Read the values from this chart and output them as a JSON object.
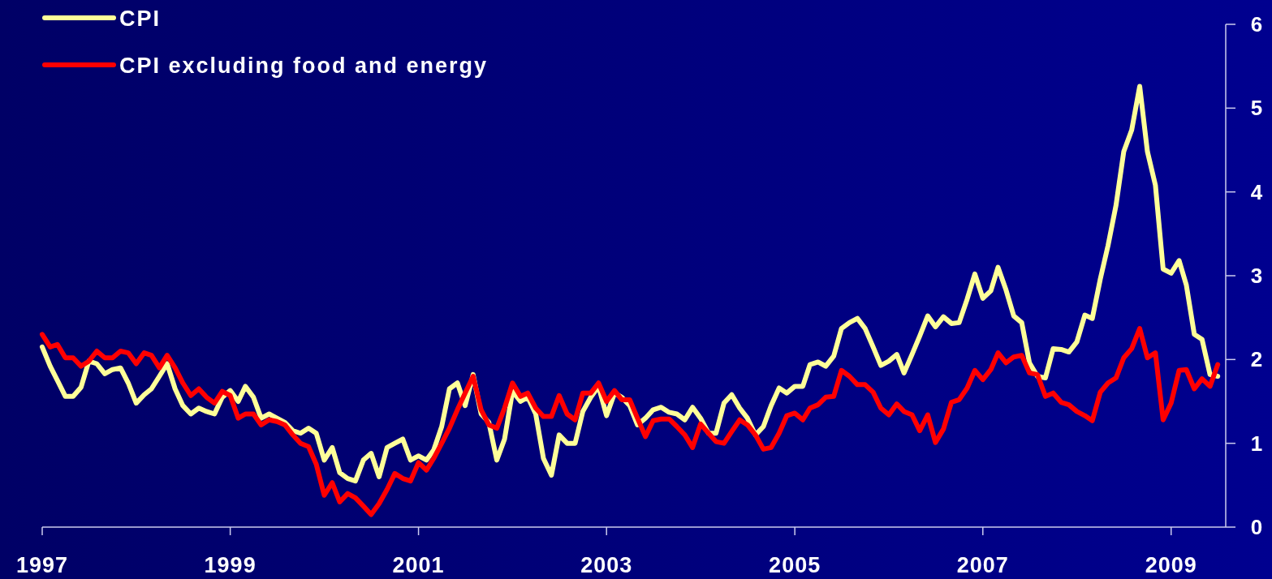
{
  "chart_data": {
    "type": "line",
    "x": [
      "1997-01",
      "1997-02",
      "1997-03",
      "1997-04",
      "1997-05",
      "1997-06",
      "1997-07",
      "1997-08",
      "1997-09",
      "1997-10",
      "1997-11",
      "1997-12",
      "1998-01",
      "1998-02",
      "1998-03",
      "1998-04",
      "1998-05",
      "1998-06",
      "1998-07",
      "1998-08",
      "1998-09",
      "1998-10",
      "1998-11",
      "1998-12",
      "1999-01",
      "1999-02",
      "1999-03",
      "1999-04",
      "1999-05",
      "1999-06",
      "1999-07",
      "1999-08",
      "1999-09",
      "1999-10",
      "1999-11",
      "1999-12",
      "2000-01",
      "2000-02",
      "2000-03",
      "2000-04",
      "2000-05",
      "2000-06",
      "2000-07",
      "2000-08",
      "2000-09",
      "2000-10",
      "2000-11",
      "2000-12",
      "2001-01",
      "2001-02",
      "2001-03",
      "2001-04",
      "2001-05",
      "2001-06",
      "2001-07",
      "2001-08",
      "2001-09",
      "2001-10",
      "2001-11",
      "2001-12",
      "2002-01",
      "2002-02",
      "2002-03",
      "2002-04",
      "2002-05",
      "2002-06",
      "2002-07",
      "2002-08",
      "2002-09",
      "2002-10",
      "2002-11",
      "2002-12",
      "2003-01",
      "2003-02",
      "2003-03",
      "2003-04",
      "2003-05",
      "2003-06",
      "2003-07",
      "2003-08",
      "2003-09",
      "2003-10",
      "2003-11",
      "2003-12",
      "2004-01",
      "2004-02",
      "2004-03",
      "2004-04",
      "2004-05",
      "2004-06",
      "2004-07",
      "2004-08",
      "2004-09",
      "2004-10",
      "2004-11",
      "2004-12",
      "2005-01",
      "2005-02",
      "2005-03",
      "2005-04",
      "2005-05",
      "2005-06",
      "2005-07",
      "2005-08",
      "2005-09",
      "2005-10",
      "2005-11",
      "2005-12",
      "2006-01",
      "2006-02",
      "2006-03",
      "2006-04",
      "2006-05",
      "2006-06",
      "2006-07",
      "2006-08",
      "2006-09",
      "2006-10",
      "2006-11",
      "2006-12",
      "2007-01",
      "2007-02",
      "2007-03",
      "2007-04",
      "2007-05",
      "2007-06",
      "2007-07",
      "2007-08",
      "2007-09",
      "2007-10",
      "2007-11",
      "2007-12",
      "2008-01",
      "2008-02",
      "2008-03",
      "2008-04",
      "2008-05",
      "2008-06",
      "2008-07",
      "2008-08",
      "2008-09",
      "2008-10",
      "2008-11",
      "2008-12",
      "2009-01",
      "2009-02",
      "2009-03",
      "2009-04",
      "2009-05",
      "2009-06",
      "2009-07"
    ],
    "series": [
      {
        "name": "CPI",
        "color": "#ffff99",
        "values": [
          2.15,
          1.92,
          1.75,
          1.56,
          1.56,
          1.67,
          1.98,
          1.95,
          1.83,
          1.88,
          1.9,
          1.72,
          1.48,
          1.58,
          1.65,
          1.8,
          1.95,
          1.65,
          1.45,
          1.35,
          1.42,
          1.38,
          1.35,
          1.55,
          1.63,
          1.5,
          1.68,
          1.55,
          1.3,
          1.35,
          1.3,
          1.25,
          1.15,
          1.12,
          1.18,
          1.12,
          0.8,
          0.95,
          0.65,
          0.58,
          0.55,
          0.8,
          0.88,
          0.6,
          0.95,
          1.0,
          1.05,
          0.8,
          0.85,
          0.8,
          0.92,
          1.2,
          1.65,
          1.72,
          1.45,
          1.82,
          1.35,
          1.25,
          0.8,
          1.05,
          1.62,
          1.5,
          1.55,
          1.35,
          0.82,
          0.62,
          1.1,
          1.0,
          1.0,
          1.38,
          1.55,
          1.68,
          1.33,
          1.6,
          1.55,
          1.45,
          1.22,
          1.3,
          1.4,
          1.43,
          1.37,
          1.35,
          1.28,
          1.43,
          1.3,
          1.12,
          1.12,
          1.48,
          1.58,
          1.42,
          1.3,
          1.1,
          1.2,
          1.45,
          1.66,
          1.6,
          1.68,
          1.68,
          1.94,
          1.97,
          1.92,
          2.04,
          2.37,
          2.44,
          2.49,
          2.37,
          2.15,
          1.93,
          1.98,
          2.06,
          1.84,
          2.06,
          2.28,
          2.52,
          2.39,
          2.51,
          2.43,
          2.44,
          2.72,
          3.02,
          2.73,
          2.82,
          3.1,
          2.83,
          2.52,
          2.44,
          1.96,
          1.8,
          1.78,
          2.13,
          2.12,
          2.09,
          2.21,
          2.53,
          2.49,
          2.96,
          3.36,
          3.84,
          4.48,
          4.74,
          5.26,
          4.48,
          4.08,
          3.08,
          3.03,
          3.18,
          2.89,
          2.3,
          2.24,
          1.82,
          1.8
        ]
      },
      {
        "name": "CPI excluding food and energy",
        "color": "#ff0000",
        "values": [
          2.3,
          2.15,
          2.18,
          2.02,
          2.02,
          1.92,
          1.98,
          2.1,
          2.02,
          2.02,
          2.1,
          2.08,
          1.95,
          2.08,
          2.05,
          1.9,
          2.05,
          1.9,
          1.72,
          1.57,
          1.65,
          1.55,
          1.48,
          1.62,
          1.57,
          1.3,
          1.35,
          1.35,
          1.22,
          1.28,
          1.26,
          1.22,
          1.1,
          1.0,
          0.96,
          0.75,
          0.38,
          0.53,
          0.3,
          0.4,
          0.35,
          0.25,
          0.15,
          0.28,
          0.45,
          0.64,
          0.58,
          0.55,
          0.77,
          0.68,
          0.82,
          1.0,
          1.18,
          1.4,
          1.6,
          1.8,
          1.4,
          1.22,
          1.18,
          1.42,
          1.72,
          1.56,
          1.6,
          1.42,
          1.32,
          1.32,
          1.57,
          1.35,
          1.28,
          1.6,
          1.6,
          1.72,
          1.5,
          1.63,
          1.52,
          1.52,
          1.3,
          1.08,
          1.27,
          1.29,
          1.29,
          1.2,
          1.1,
          0.95,
          1.23,
          1.12,
          1.02,
          1.0,
          1.14,
          1.28,
          1.22,
          1.1,
          0.93,
          0.95,
          1.12,
          1.33,
          1.36,
          1.28,
          1.42,
          1.46,
          1.55,
          1.56,
          1.87,
          1.8,
          1.7,
          1.7,
          1.61,
          1.42,
          1.34,
          1.47,
          1.38,
          1.34,
          1.15,
          1.34,
          1.01,
          1.17,
          1.49,
          1.52,
          1.66,
          1.87,
          1.76,
          1.88,
          2.08,
          1.96,
          2.03,
          2.05,
          1.84,
          1.82,
          1.56,
          1.6,
          1.49,
          1.46,
          1.38,
          1.33,
          1.27,
          1.61,
          1.72,
          1.78,
          2.02,
          2.13,
          2.37,
          2.02,
          2.08,
          1.28,
          1.48,
          1.87,
          1.88,
          1.65,
          1.77,
          1.68,
          1.94
        ]
      }
    ],
    "xlim": [
      "1997-01",
      "2009-08"
    ],
    "xticks": [
      {
        "value": "1997-01",
        "label": "1997"
      },
      {
        "value": "1999-01",
        "label": "1999"
      },
      {
        "value": "2001-01",
        "label": "2001"
      },
      {
        "value": "2003-01",
        "label": "2003"
      },
      {
        "value": "2005-01",
        "label": "2005"
      },
      {
        "value": "2007-01",
        "label": "2007"
      },
      {
        "value": "2009-01",
        "label": "2009"
      }
    ],
    "ylim": [
      0,
      6
    ],
    "yticks": [
      0,
      1,
      2,
      3,
      4,
      5,
      6
    ],
    "grid": false,
    "legend": "top left",
    "marker": "none",
    "line_style": "solid"
  }
}
